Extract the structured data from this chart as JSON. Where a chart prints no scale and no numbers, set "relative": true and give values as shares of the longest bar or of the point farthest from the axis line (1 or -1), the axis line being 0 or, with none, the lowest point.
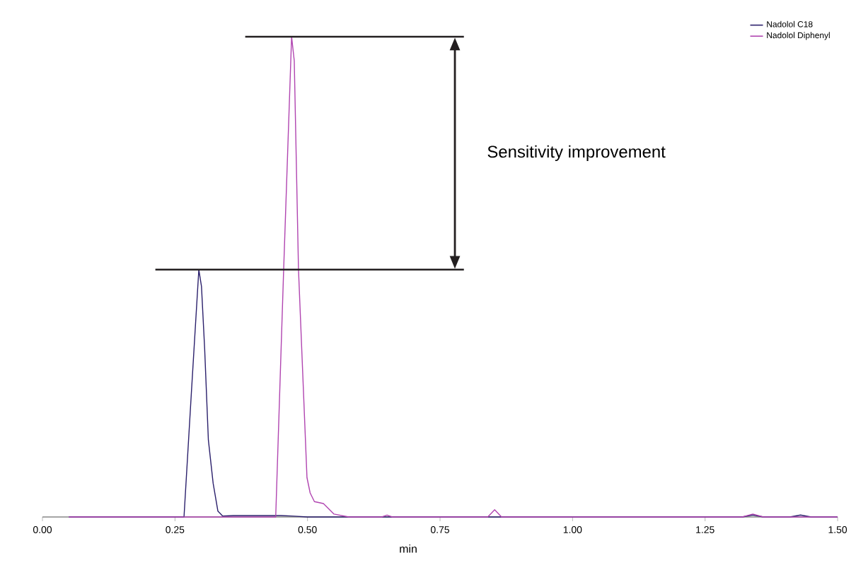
{
  "chart_data": {
    "type": "line",
    "relative": true,
    "xlabel": "min",
    "xlim": [
      0,
      1.5
    ],
    "xticks": [
      {
        "value": 0,
        "label": "0.00"
      },
      {
        "value": 0.25,
        "label": "0.25"
      },
      {
        "value": 0.5,
        "label": "0.50"
      },
      {
        "value": 0.75,
        "label": "0.75"
      },
      {
        "value": 1.0,
        "label": "1.00"
      },
      {
        "value": 1.25,
        "label": "1.25"
      },
      {
        "value": 1.5,
        "label": "1.50"
      }
    ],
    "legend": "top right",
    "series": [
      {
        "name": "Nadolol C18",
        "color": "#2a1f6b",
        "x": [
          0.05,
          0.267,
          0.281,
          0.295,
          0.3,
          0.306,
          0.313,
          0.322,
          0.331,
          0.34,
          0.36,
          0.45,
          0.47,
          0.5,
          1.32,
          1.34,
          1.36,
          1.41,
          1.43,
          1.45,
          1.5
        ],
        "values": [
          0,
          0,
          0.26,
          0.515,
          0.48,
          0.35,
          0.16,
          0.07,
          0.012,
          0.002,
          0.003,
          0.003,
          0.002,
          0,
          0,
          0.004,
          0,
          0,
          0.004,
          0,
          0
        ]
      },
      {
        "name": "Nadolol Diphenyl",
        "color": "#b044b0",
        "x": [
          0.05,
          0.44,
          0.455,
          0.47,
          0.475,
          0.483,
          0.499,
          0.505,
          0.513,
          0.53,
          0.55,
          0.578,
          0.64,
          0.65,
          0.66,
          0.84,
          0.853,
          0.866,
          1.32,
          1.34,
          1.36,
          1.5
        ],
        "values": [
          0,
          0,
          0.515,
          1,
          0.95,
          0.515,
          0.082,
          0.05,
          0.032,
          0.028,
          0.006,
          0,
          0,
          0.004,
          0,
          0,
          0.015,
          0,
          0,
          0.006,
          0,
          0
        ]
      }
    ],
    "ref_lines": [
      {
        "axis": "y",
        "value": 1,
        "color": "#231f20"
      },
      {
        "axis": "y",
        "value": 0.515,
        "color": "#231f20"
      }
    ],
    "annotations": [
      "Sensitivity improvement"
    ]
  }
}
